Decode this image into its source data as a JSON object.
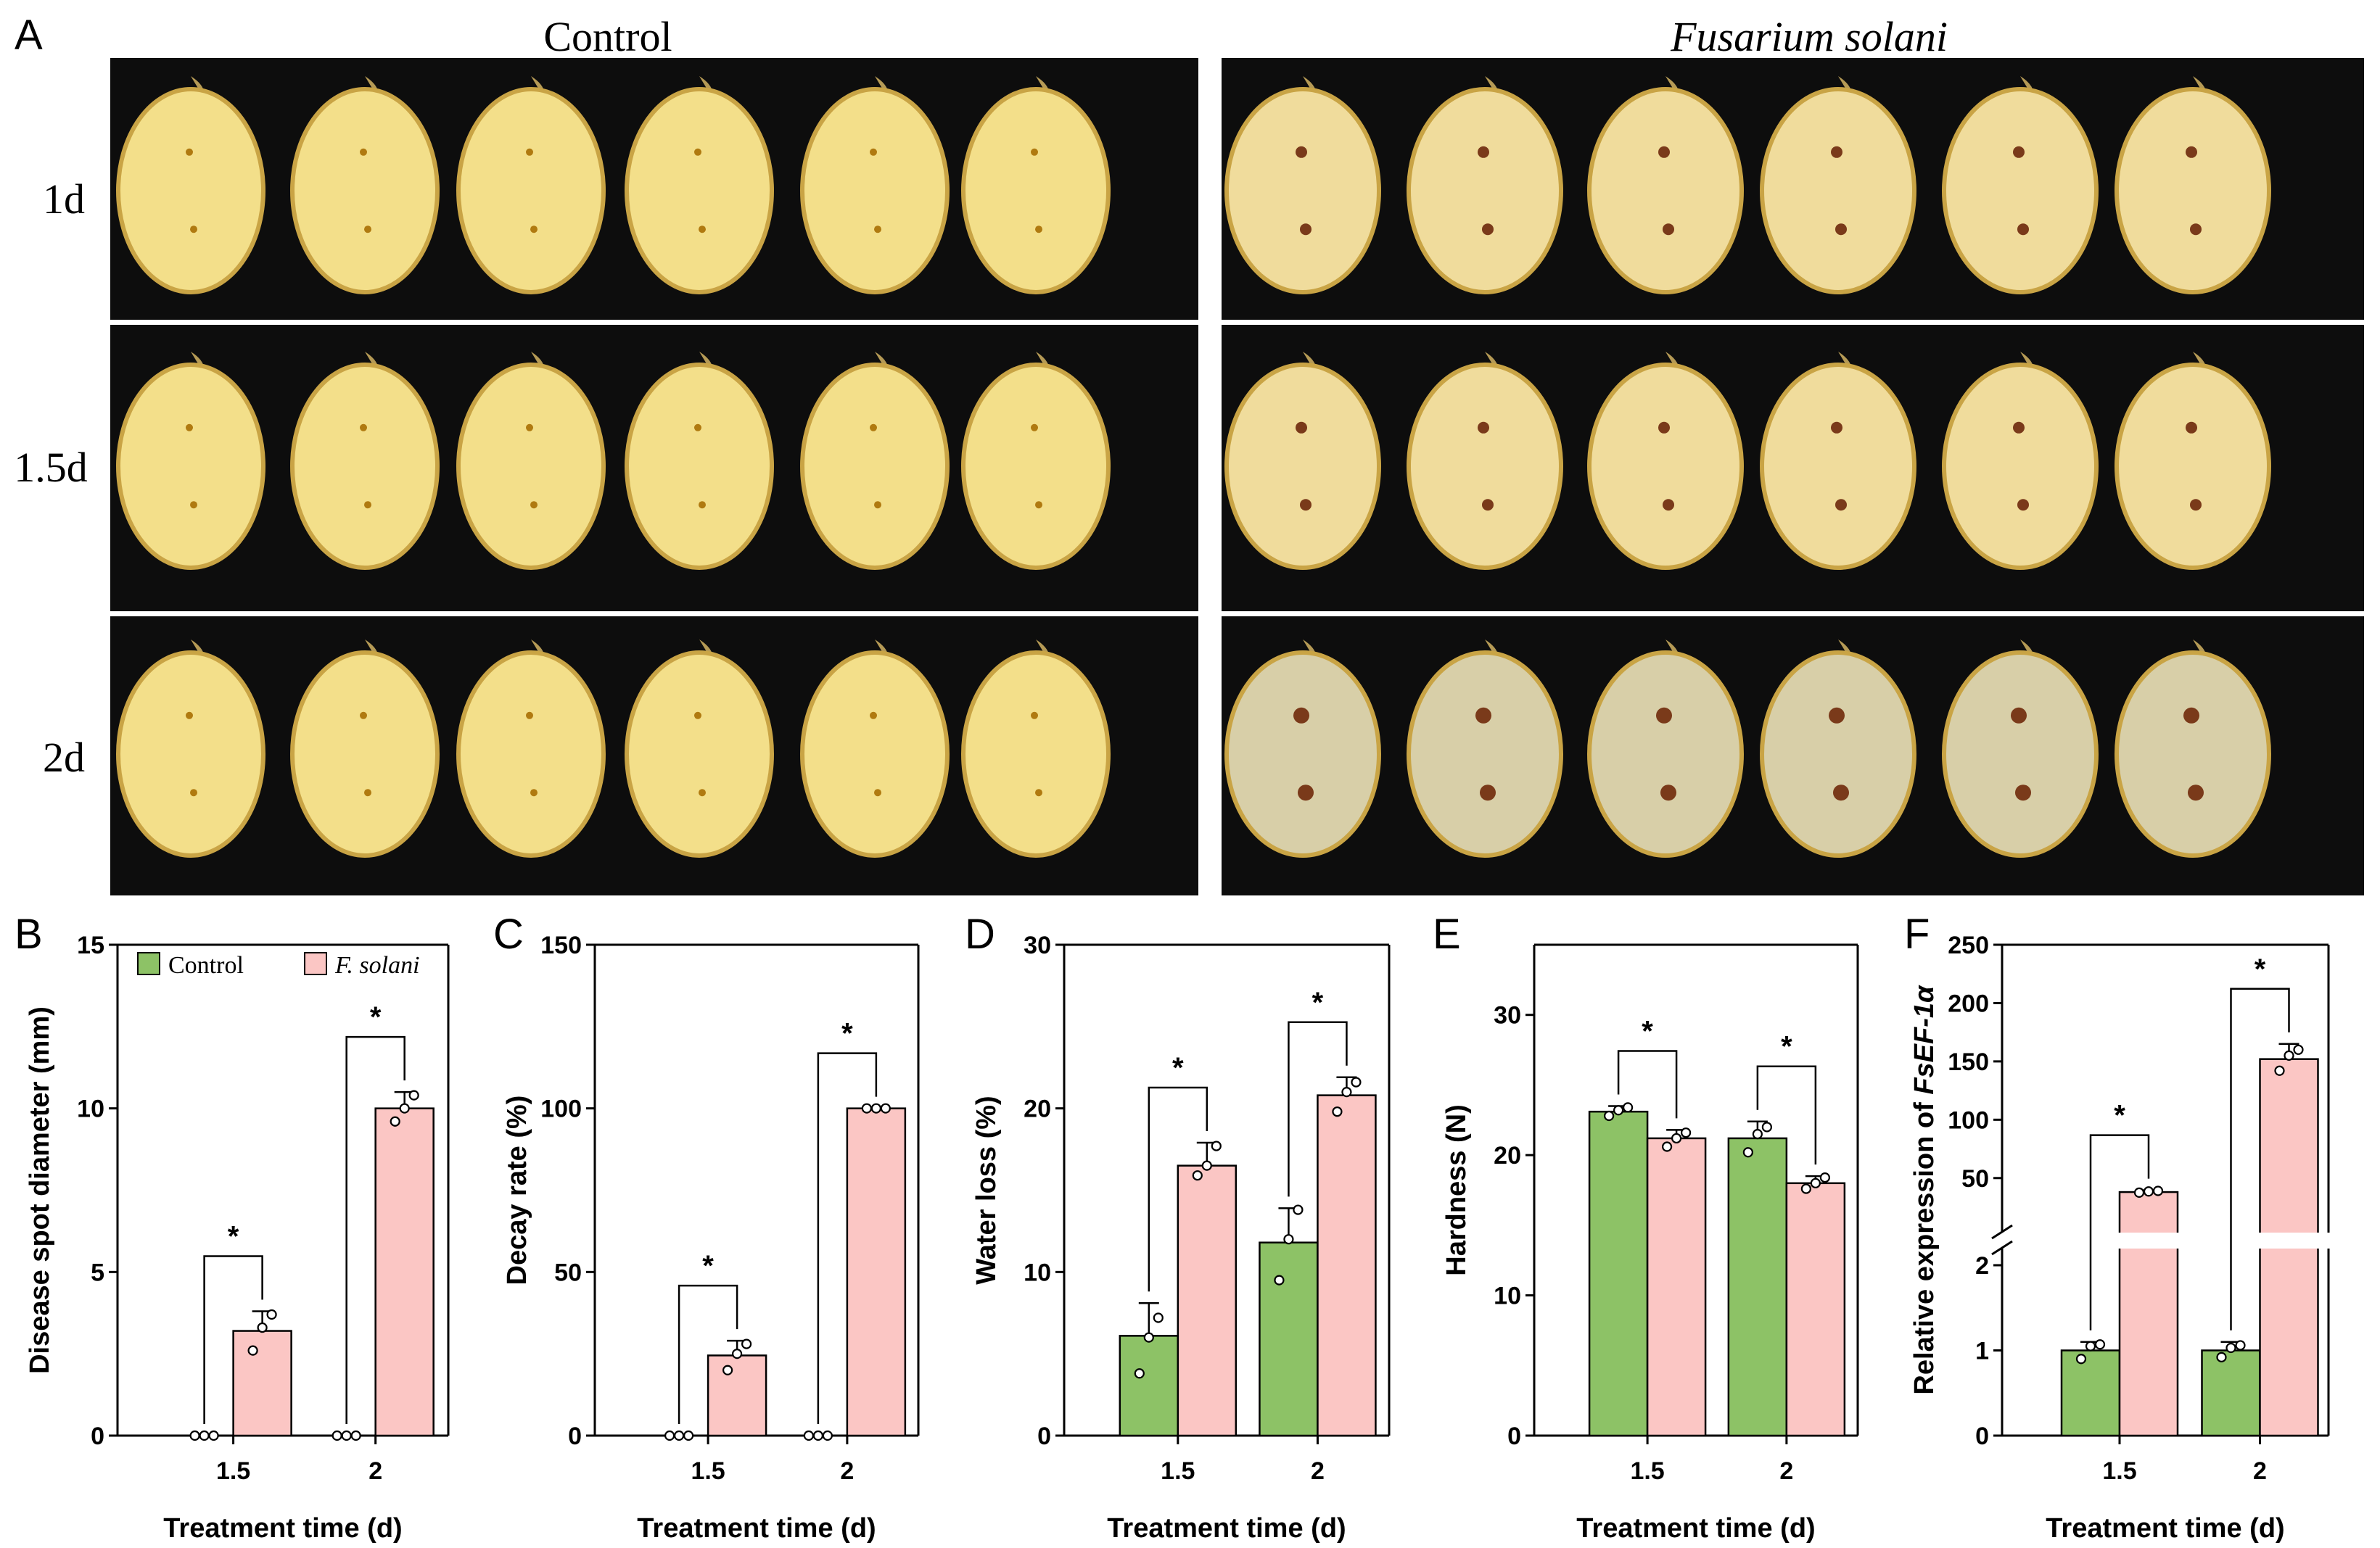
{
  "figure": {
    "panel_letters": {
      "A": "A",
      "B": "B",
      "C": "C",
      "D": "D",
      "E": "E",
      "F": "F"
    },
    "photo_headers": {
      "left": "Control",
      "right": "Fusarium solani"
    },
    "row_labels": [
      "1d",
      "1.5d",
      "2d"
    ],
    "photo_note": "Ginger rhizome cross-sections, six per row"
  },
  "colors": {
    "control": "#8dc266",
    "fsolani": "#fbc6c4",
    "photo_bg": "#0d0d0d",
    "flesh": "#f3df8a",
    "rot": "#d8cfa8",
    "lesion": "#7a3a1a"
  },
  "legend": {
    "control": "Control",
    "fsolani": "F. solani"
  },
  "chart_data": [
    {
      "id": "B",
      "type": "bar",
      "title": "",
      "xlabel": "Treatment time (d)",
      "ylabel": "Disease spot diameter (mm)",
      "categories": [
        "1.5",
        "2"
      ],
      "ylim": [
        0,
        15
      ],
      "yticks": [
        0,
        5,
        10,
        15
      ],
      "series": [
        {
          "name": "Control",
          "values": [
            0,
            0
          ],
          "err": [
            0,
            0
          ],
          "points": [
            [
              0,
              0,
              0
            ],
            [
              0,
              0,
              0
            ]
          ]
        },
        {
          "name": "F. solani",
          "values": [
            3.2,
            10.0
          ],
          "err": [
            0.6,
            0.5
          ],
          "points": [
            [
              2.6,
              3.3,
              3.7
            ],
            [
              9.6,
              10.0,
              10.4
            ]
          ]
        }
      ],
      "significance": [
        "*",
        "*"
      ],
      "legend": true
    },
    {
      "id": "C",
      "type": "bar",
      "title": "",
      "xlabel": "Treatment time (d)",
      "ylabel": "Decay rate (%)",
      "categories": [
        "1.5",
        "2"
      ],
      "ylim": [
        0,
        150
      ],
      "yticks": [
        0,
        50,
        100,
        150
      ],
      "series": [
        {
          "name": "Control",
          "values": [
            0,
            0
          ],
          "err": [
            0,
            0
          ],
          "points": [
            [
              0,
              0,
              0
            ],
            [
              0,
              0,
              0
            ]
          ]
        },
        {
          "name": "F. solani",
          "values": [
            24.5,
            100
          ],
          "err": [
            4.5,
            0
          ],
          "points": [
            [
              20,
              25,
              28
            ],
            [
              100,
              100,
              100
            ]
          ]
        }
      ],
      "significance": [
        "*",
        "*"
      ]
    },
    {
      "id": "D",
      "type": "bar",
      "title": "",
      "xlabel": "Treatment time (d)",
      "ylabel": "Water loss (%)",
      "categories": [
        "1.5",
        "2"
      ],
      "ylim": [
        0,
        30
      ],
      "yticks": [
        0,
        10,
        20,
        30
      ],
      "series": [
        {
          "name": "Control",
          "values": [
            6.1,
            11.8
          ],
          "err": [
            2.0,
            2.1
          ],
          "points": [
            [
              3.8,
              6.0,
              7.2
            ],
            [
              9.5,
              12.0,
              13.8
            ]
          ]
        },
        {
          "name": "F. solani",
          "values": [
            16.5,
            20.8
          ],
          "err": [
            1.4,
            1.1
          ],
          "points": [
            [
              15.9,
              16.5,
              17.7
            ],
            [
              19.8,
              21.0,
              21.6
            ]
          ]
        }
      ],
      "significance": [
        "*",
        "*"
      ]
    },
    {
      "id": "E",
      "type": "bar",
      "title": "",
      "xlabel": "Treatment time (d)",
      "ylabel": "Hardness (N)",
      "categories": [
        "1.5",
        "2"
      ],
      "ylim": [
        0,
        35
      ],
      "yticks": [
        0,
        10,
        20,
        30
      ],
      "series": [
        {
          "name": "Control",
          "values": [
            23.1,
            21.2
          ],
          "err": [
            0.4,
            1.2
          ],
          "points": [
            [
              22.8,
              23.2,
              23.4
            ],
            [
              20.2,
              21.5,
              22.0
            ]
          ]
        },
        {
          "name": "F. solani",
          "values": [
            21.2,
            18.0
          ],
          "err": [
            0.6,
            0.5
          ],
          "points": [
            [
              20.6,
              21.2,
              21.6
            ],
            [
              17.6,
              18.0,
              18.4
            ]
          ]
        }
      ],
      "significance": [
        "*",
        "*"
      ]
    },
    {
      "id": "F",
      "type": "bar",
      "title": "",
      "xlabel": "Treatment time (d)",
      "ylabel_prefix": "Relative expression of ",
      "ylabel_gene": "FsEF-1α",
      "categories": [
        "1.5",
        "2"
      ],
      "axis_break": [
        2,
        25
      ],
      "lower_ticks": [
        0,
        1,
        2
      ],
      "upper_ticks": [
        50,
        100,
        150,
        200,
        250
      ],
      "ylim": [
        0,
        250
      ],
      "series": [
        {
          "name": "Control",
          "values": [
            1.0,
            1.0
          ],
          "err": [
            0.1,
            0.1
          ],
          "points": [
            [
              0.9,
              1.05,
              1.07
            ],
            [
              0.92,
              1.03,
              1.06
            ]
          ]
        },
        {
          "name": "F. solani",
          "values": [
            38,
            152
          ],
          "err": [
            1.5,
            13
          ],
          "points": [
            [
              37.5,
              38.5,
              39
            ],
            [
              142,
              155,
              160
            ]
          ]
        }
      ],
      "significance": [
        "*",
        "*"
      ]
    }
  ]
}
